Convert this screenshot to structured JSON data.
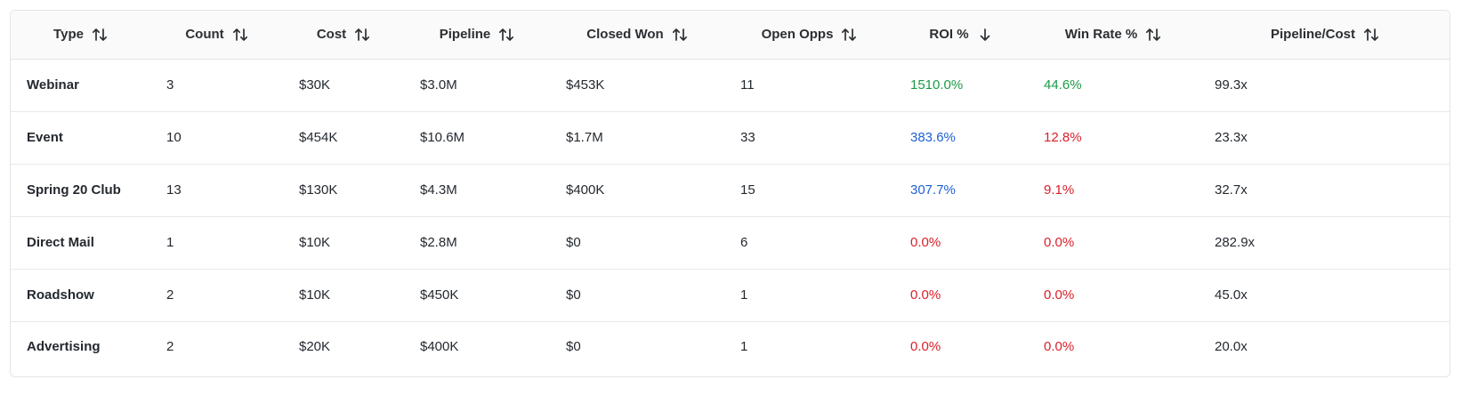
{
  "columns": [
    {
      "key": "type",
      "label": "Type",
      "sort": "both"
    },
    {
      "key": "count",
      "label": "Count",
      "sort": "both"
    },
    {
      "key": "cost",
      "label": "Cost",
      "sort": "both"
    },
    {
      "key": "pipeline",
      "label": "Pipeline",
      "sort": "both"
    },
    {
      "key": "closed_won",
      "label": "Closed Won",
      "sort": "both"
    },
    {
      "key": "open_opps",
      "label": "Open Opps",
      "sort": "both"
    },
    {
      "key": "roi",
      "label": "ROI %",
      "sort": "desc"
    },
    {
      "key": "win_rate",
      "label": "Win Rate %",
      "sort": "both"
    },
    {
      "key": "pipeline_cost",
      "label": "Pipeline/Cost",
      "sort": "both"
    }
  ],
  "rows": [
    {
      "type": "Webinar",
      "count": "3",
      "cost": "$30K",
      "pipeline": "$3.0M",
      "closed_won": "$453K",
      "open_opps": "11",
      "roi": "1510.0%",
      "roi_color": "green",
      "win_rate": "44.6%",
      "win_rate_color": "green",
      "pipeline_cost": "99.3x"
    },
    {
      "type": "Event",
      "count": "10",
      "cost": "$454K",
      "pipeline": "$10.6M",
      "closed_won": "$1.7M",
      "open_opps": "33",
      "roi": "383.6%",
      "roi_color": "blue",
      "win_rate": "12.8%",
      "win_rate_color": "red",
      "pipeline_cost": "23.3x"
    },
    {
      "type": "Spring 20 Club",
      "count": "13",
      "cost": "$130K",
      "pipeline": "$4.3M",
      "closed_won": "$400K",
      "open_opps": "15",
      "roi": "307.7%",
      "roi_color": "blue",
      "win_rate": "9.1%",
      "win_rate_color": "red",
      "pipeline_cost": "32.7x"
    },
    {
      "type": "Direct Mail",
      "count": "1",
      "cost": "$10K",
      "pipeline": "$2.8M",
      "closed_won": "$0",
      "open_opps": "6",
      "roi": "0.0%",
      "roi_color": "red",
      "win_rate": "0.0%",
      "win_rate_color": "red",
      "pipeline_cost": "282.9x"
    },
    {
      "type": "Roadshow",
      "count": "2",
      "cost": "$10K",
      "pipeline": "$450K",
      "closed_won": "$0",
      "open_opps": "1",
      "roi": "0.0%",
      "roi_color": "red",
      "win_rate": "0.0%",
      "win_rate_color": "red",
      "pipeline_cost": "45.0x"
    },
    {
      "type": "Advertising",
      "count": "2",
      "cost": "$20K",
      "pipeline": "$400K",
      "closed_won": "$0",
      "open_opps": "1",
      "roi": "0.0%",
      "roi_color": "red",
      "win_rate": "0.0%",
      "win_rate_color": "red",
      "pipeline_cost": "20.0x"
    }
  ],
  "status_colors": {
    "green": "#1a9b45",
    "blue": "#2060d6",
    "red": "#d9202a"
  },
  "icons": {
    "both": "sort-both-icon",
    "desc": "sort-desc-icon"
  }
}
